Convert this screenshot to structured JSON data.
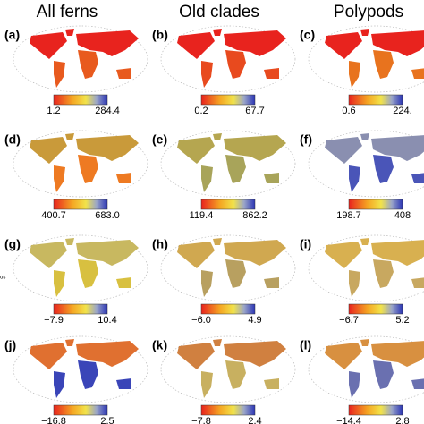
{
  "column_titles": [
    "All ferns",
    "Old clades",
    "Polypods"
  ],
  "side_label": "os",
  "panels": [
    {
      "label": "(a)",
      "min": "1.2",
      "max": "284.4"
    },
    {
      "label": "(b)",
      "min": "0.2",
      "max": "67.7"
    },
    {
      "label": "(c)",
      "min": "0.6",
      "max": "224."
    },
    {
      "label": "(d)",
      "min": "400.7",
      "max": "683.0"
    },
    {
      "label": "(e)",
      "min": "119.4",
      "max": "862.2"
    },
    {
      "label": "(f)",
      "min": "198.7",
      "max": "408"
    },
    {
      "label": "(g)",
      "min": "−7.9",
      "max": "10.4"
    },
    {
      "label": "(h)",
      "min": "−6.0",
      "max": "4.9"
    },
    {
      "label": "(i)",
      "min": "−6.7",
      "max": "5.2"
    },
    {
      "label": "(j)",
      "min": "−16.8",
      "max": "2.5"
    },
    {
      "label": "(k)",
      "min": "−7.8",
      "max": "2.4"
    },
    {
      "label": "(l)",
      "min": "−14.4",
      "max": "2.8"
    }
  ]
}
